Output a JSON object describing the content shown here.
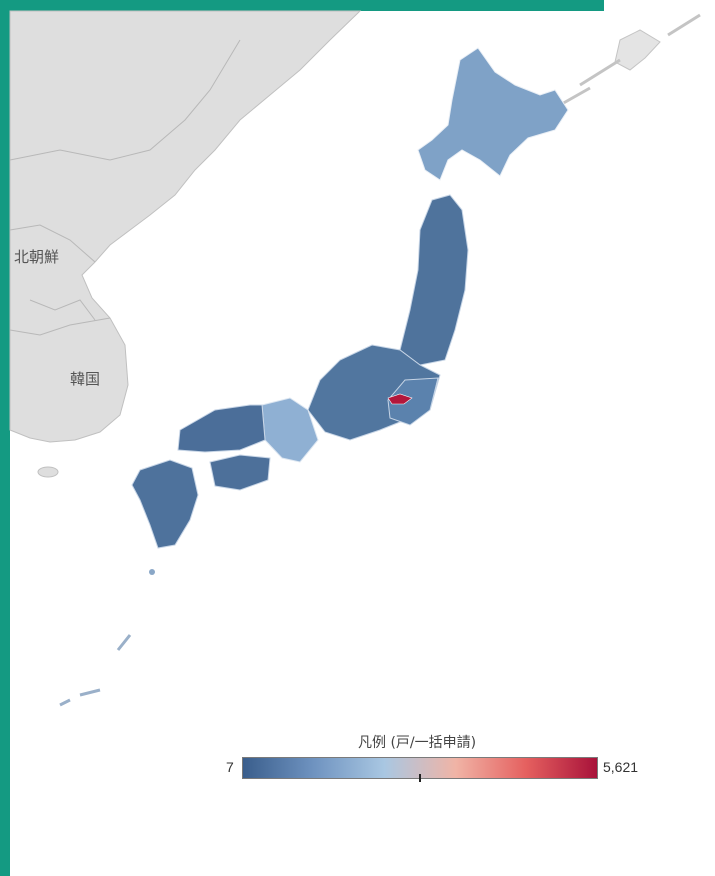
{
  "map": {
    "labels": {
      "north_korea": "北朝鮮",
      "south_korea": "韓国"
    },
    "colors": {
      "land_other": "#dcdcdc",
      "water": "#ffffff",
      "japan_low": "#4b6e99",
      "japan_mid": "#6e93bd",
      "japan_light": "#95b6d6",
      "tokyo_high": "#b3173b",
      "frame": "#149a82"
    }
  },
  "legend": {
    "title": "凡例 (戸/一括申請)",
    "min_label": "7",
    "max_label": "5,621",
    "min_value": 7,
    "max_value": 5621,
    "marker_value": 2800,
    "gradient_colors": [
      "#3a5e8c",
      "#6f93c0",
      "#a9c7e2",
      "#f0b4a6",
      "#e5605f",
      "#a8123a"
    ]
  }
}
